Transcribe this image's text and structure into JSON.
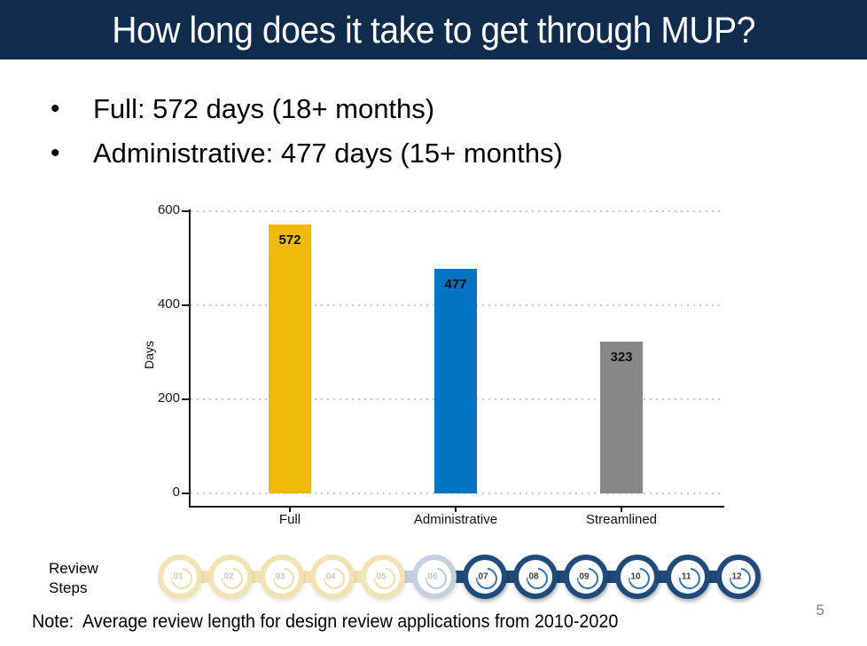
{
  "slide": {
    "title": "How long does it take to get through MUP?",
    "bullets": [
      "Full: 572 days (18+ months)",
      "Administrative: 477 days (15+ months)"
    ],
    "note": "Note:  Average review length for design review applications from 2010-2020",
    "page_number": "5"
  },
  "chart_data": {
    "type": "bar",
    "title": "",
    "categories": [
      "Full",
      "Administrative",
      "Streamlined"
    ],
    "values": [
      572,
      477,
      323
    ],
    "data_labels": [
      "572",
      "477",
      "323"
    ],
    "colors": [
      "#efba0c",
      "#0274c2",
      "#878787"
    ],
    "xlabel": "",
    "ylabel": "Days",
    "ylim": [
      0,
      600
    ],
    "yticks": [
      0,
      200,
      400,
      600
    ],
    "grid": "dotted horizontal gridlines at each y tick",
    "legend": "none"
  },
  "review_steps": {
    "label": "Review\nSteps",
    "steps": [
      {
        "num": "01",
        "state": "faded_yellow"
      },
      {
        "num": "02",
        "state": "faded_yellow"
      },
      {
        "num": "03",
        "state": "faded_yellow"
      },
      {
        "num": "04",
        "state": "faded_yellow"
      },
      {
        "num": "05",
        "state": "faded_yellow"
      },
      {
        "num": "06",
        "state": "faded_blue"
      },
      {
        "num": "07",
        "state": "bold_blue"
      },
      {
        "num": "08",
        "state": "bold_blue"
      },
      {
        "num": "09",
        "state": "bold_blue"
      },
      {
        "num": "10",
        "state": "bold_blue"
      },
      {
        "num": "11",
        "state": "bold_blue"
      },
      {
        "num": "12",
        "state": "bold_blue"
      }
    ]
  },
  "colors": {
    "title_bar_bg": "#0f2c4d",
    "title_text": "#ffffff",
    "body_text": "#000000",
    "axis": "#1a1a1a",
    "gridline": "#c6c6c6",
    "step_active_ring": "#1f4b7c",
    "step_active_arc": "#2e75b6",
    "step_active_number": "#3d3d3d",
    "step_faded_yellow_ring": "#f2e2b4",
    "step_faded_yellow_arc": "#ecddaa",
    "step_faded_yellow_number": "#cdc7b6",
    "step_faded_blue_ring": "#c6cfdf",
    "step_faded_blue_arc": "#bfc9da",
    "step_faded_blue_number": "#bdc3cd",
    "page_number": "#808080"
  }
}
